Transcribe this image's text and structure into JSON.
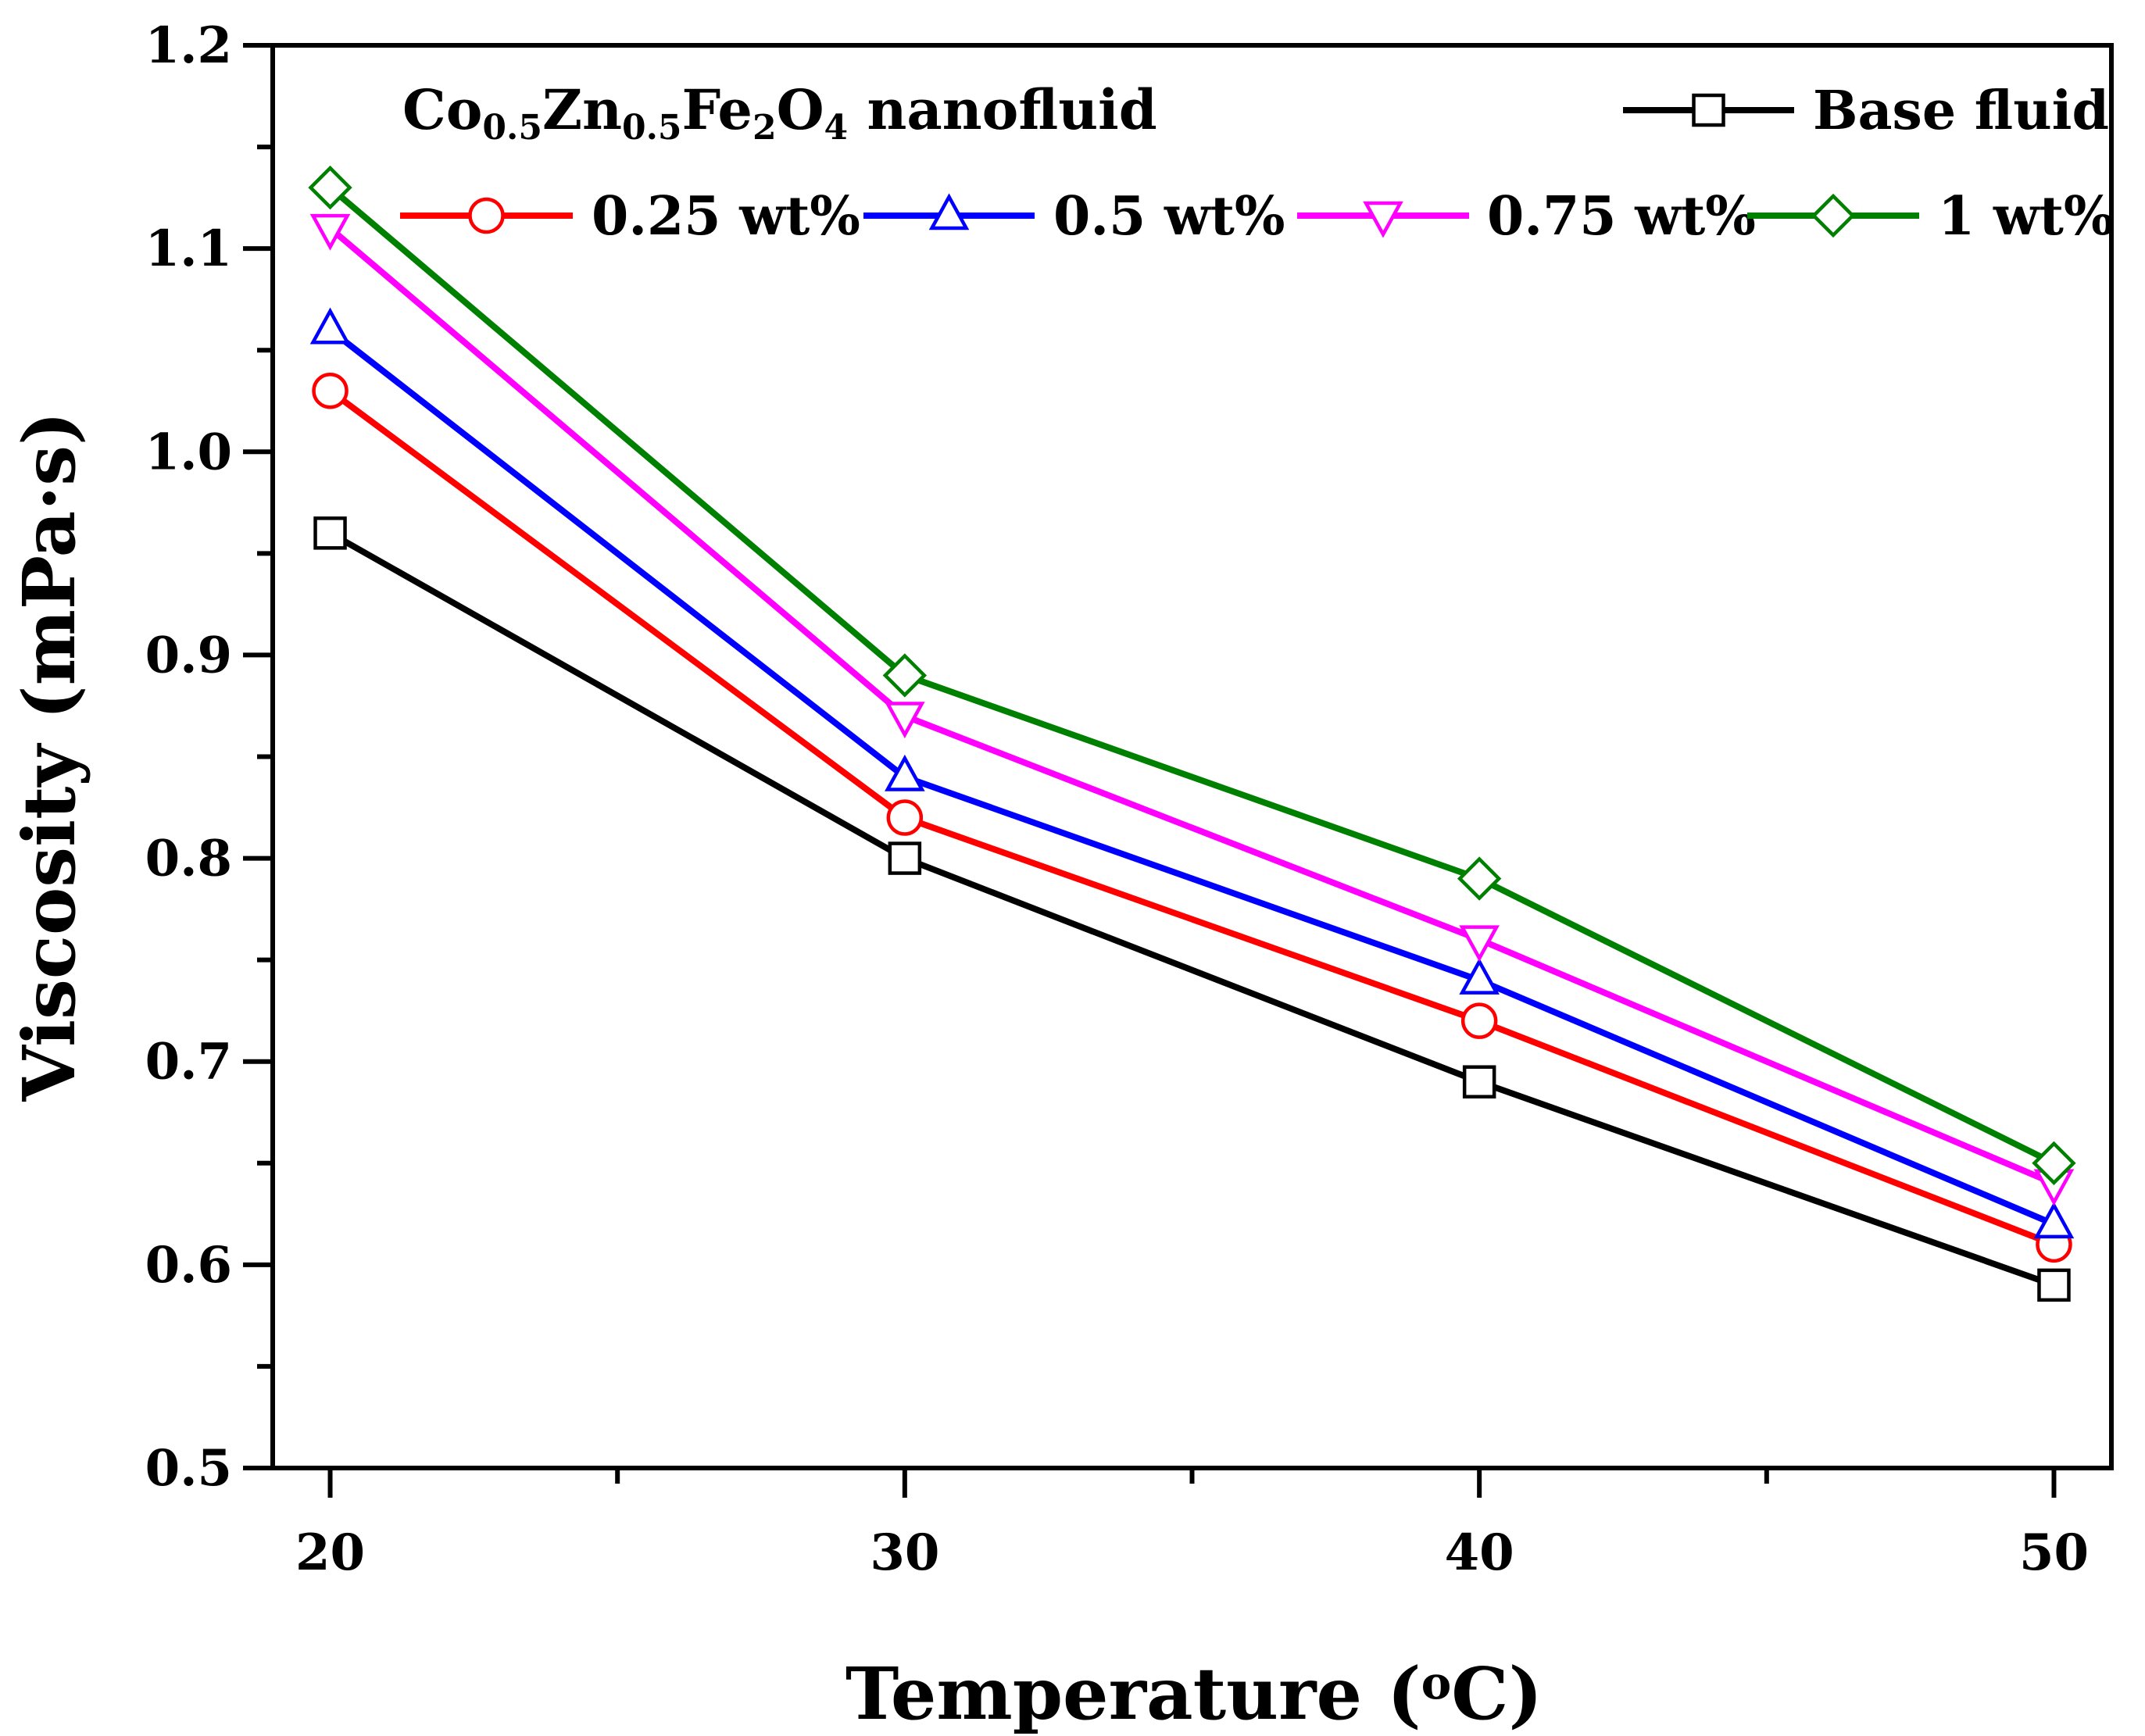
{
  "chart_data": {
    "type": "line",
    "annotation": {
      "parts": [
        {
          "text": "Co",
          "sub": false
        },
        {
          "text": "0.5",
          "sub": true
        },
        {
          "text": "Zn",
          "sub": false
        },
        {
          "text": "0.5",
          "sub": true
        },
        {
          "text": "Fe",
          "sub": false
        },
        {
          "text": "2",
          "sub": true
        },
        {
          "text": "O",
          "sub": false
        },
        {
          "text": "4",
          "sub": true
        },
        {
          "text": " nanofluid",
          "sub": false
        }
      ]
    },
    "xlabel": "Temperature (",
    "xlabel_sup": "o",
    "xlabel_end": "C)",
    "ylabel": "Viscosity (mPa·s)",
    "xlim": [
      19,
      51
    ],
    "ylim": [
      0.5,
      1.2
    ],
    "xticks": [
      "20",
      "30",
      "40",
      "50"
    ],
    "xtick_values": [
      20,
      30,
      40,
      50
    ],
    "yticks": [
      "0.5",
      "0.6",
      "0.7",
      "0.8",
      "0.9",
      "1.0",
      "1.1",
      "1.2"
    ],
    "ytick_values": [
      0.5,
      0.6,
      0.7,
      0.8,
      0.9,
      1.0,
      1.1,
      1.2
    ],
    "x": [
      20,
      30,
      40,
      50
    ],
    "grid": false,
    "legend_position": "top",
    "series": [
      {
        "name": "Base fluid",
        "values": [
          0.96,
          0.8,
          0.69,
          0.59
        ],
        "color": "#000000",
        "marker": "square"
      },
      {
        "name": "0.25 wt%",
        "values": [
          1.03,
          0.82,
          0.72,
          0.61
        ],
        "color": "#ff0000",
        "marker": "circle"
      },
      {
        "name": "0.5 wt%",
        "values": [
          1.06,
          0.84,
          0.74,
          0.62
        ],
        "color": "#0000ff",
        "marker": "triangle-up"
      },
      {
        "name": "0.75 wt%",
        "values": [
          1.11,
          0.87,
          0.76,
          0.64
        ],
        "color": "#ff00ff",
        "marker": "triangle-down"
      },
      {
        "name": "1 wt%",
        "values": [
          1.13,
          0.89,
          0.79,
          0.65
        ],
        "color": "#008000",
        "marker": "diamond"
      }
    ]
  }
}
